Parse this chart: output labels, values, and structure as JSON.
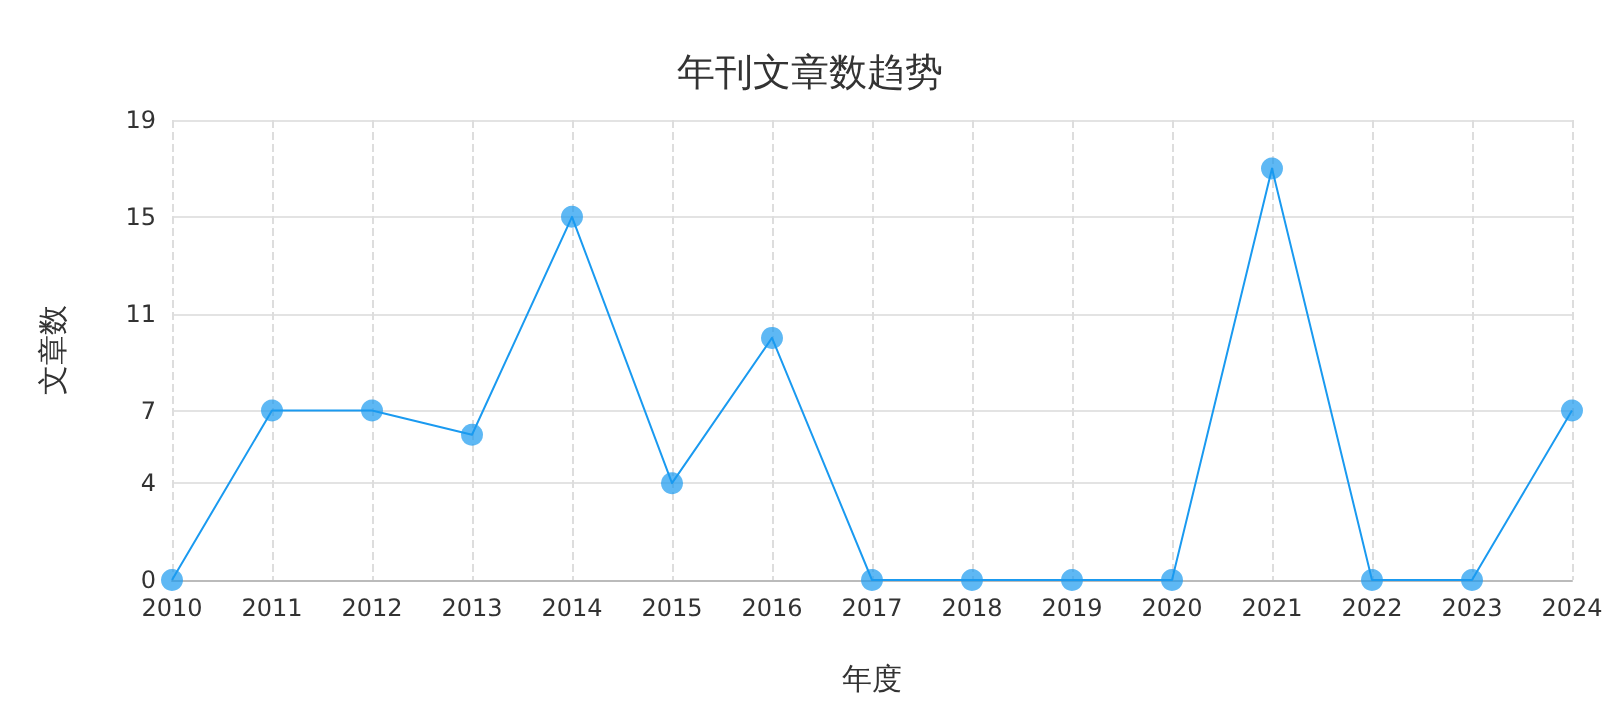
{
  "chart_data": {
    "type": "line",
    "title": "年刊文章数趋势",
    "xlabel": "年度",
    "ylabel": "文章数",
    "categories": [
      "2010",
      "2011",
      "2012",
      "2013",
      "2014",
      "2015",
      "2016",
      "2017",
      "2018",
      "2019",
      "2020",
      "2021",
      "2022",
      "2023",
      "2024"
    ],
    "series": [
      {
        "color": "#1a9af0",
        "values": [
          0,
          7,
          7,
          6,
          15,
          4,
          10,
          0,
          0,
          0,
          0,
          17,
          0,
          0,
          7
        ]
      }
    ],
    "ylim": [
      0,
      19
    ],
    "yticks": [
      0,
      4,
      7,
      11,
      15,
      19
    ],
    "grid": true,
    "marker": "circle",
    "line_style": "solid"
  }
}
